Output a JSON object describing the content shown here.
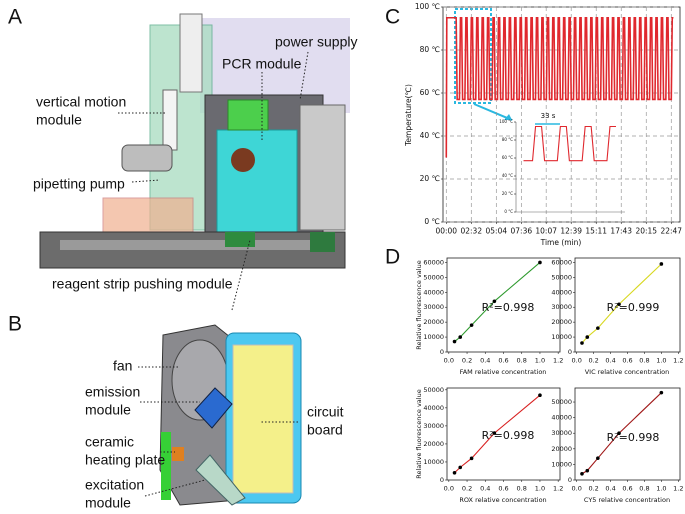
{
  "panels": {
    "a": {
      "letter": "A",
      "labels": [
        [
          "power supply"
        ],
        [
          "PCR module"
        ],
        [
          "vertical motion",
          "module"
        ],
        [
          "pipetting pump"
        ],
        [
          "reagent strip pushing module"
        ]
      ]
    },
    "b": {
      "letter": "B",
      "labels": [
        [
          "fan"
        ],
        [
          "emission",
          "module"
        ],
        [
          "ceramic",
          "heating plate"
        ],
        [
          "excitation",
          "module"
        ],
        [
          "circuit",
          "board"
        ]
      ]
    },
    "c": {
      "letter": "C"
    },
    "d": {
      "letter": "D"
    }
  },
  "chart_data": [
    {
      "type": "line",
      "ylabel": "Temperature(℃)",
      "xlabel": "Time (min)",
      "xlim": [
        -20,
        1420
      ],
      "ylim": [
        0,
        100
      ],
      "xticks": [
        {
          "value": 0,
          "label": "00:00"
        },
        {
          "value": 152,
          "label": "02:32"
        },
        {
          "value": 304,
          "label": "05:04"
        },
        {
          "value": 456,
          "label": "07:36"
        },
        {
          "value": 607,
          "label": "10:07"
        },
        {
          "value": 759,
          "label": "12:39"
        },
        {
          "value": 911,
          "label": "15:11"
        },
        {
          "value": 1063,
          "label": "17:43"
        },
        {
          "value": 1215,
          "label": "20:15"
        },
        {
          "value": 1367,
          "label": "22:47"
        }
      ],
      "yticks": [
        {
          "value": 0,
          "label": "0 ℃"
        },
        {
          "value": 20,
          "label": "20 ℃"
        },
        {
          "value": 40,
          "label": "40 ℃"
        },
        {
          "value": 60,
          "label": "60 ℃"
        },
        {
          "value": 80,
          "label": "80 ℃"
        },
        {
          "value": 100,
          "label": "100 ℃"
        }
      ],
      "grid": true,
      "color": "#e0282e",
      "x": [
        0,
        3,
        60,
        66,
        80,
        86,
        93,
        99,
        113,
        119,
        126,
        132,
        146,
        152,
        159,
        165,
        179,
        185,
        192,
        198,
        212,
        218,
        225,
        231,
        245,
        251,
        258,
        264,
        278,
        284,
        291,
        297,
        311,
        317,
        324,
        330,
        344,
        350,
        357,
        363,
        377,
        383,
        390,
        396,
        410,
        416,
        423,
        429,
        443,
        449,
        456,
        462,
        476,
        482,
        489,
        495,
        509,
        515,
        522,
        528,
        542,
        548,
        555,
        561,
        575,
        581,
        588,
        594,
        608,
        614,
        621,
        627,
        641,
        647,
        654,
        660,
        674,
        680,
        687,
        693,
        707,
        713,
        720,
        726,
        740,
        746,
        753,
        759,
        773,
        779,
        786,
        792,
        806,
        812,
        819,
        825,
        839,
        845,
        852,
        858,
        872,
        878,
        885,
        891,
        905,
        911,
        918,
        924,
        938,
        944,
        951,
        957,
        971,
        977,
        984,
        990,
        1004,
        1010,
        1017,
        1023,
        1037,
        1043,
        1050,
        1056,
        1070,
        1076,
        1083,
        1089,
        1103,
        1109,
        1116,
        1122,
        1136,
        1142,
        1149,
        1155,
        1169,
        1175,
        1182,
        1188,
        1202,
        1208,
        1215,
        1221,
        1235,
        1241,
        1248,
        1254,
        1268,
        1274,
        1281,
        1287,
        1301,
        1307,
        1314,
        1320,
        1334,
        1340,
        1347,
        1353,
        1367,
        1373,
        1380
      ],
      "values": [
        30,
        95,
        95,
        57,
        57,
        95,
        95,
        57,
        57,
        95,
        95,
        57,
        57,
        95,
        95,
        57,
        57,
        95,
        95,
        57,
        57,
        95,
        95,
        57,
        57,
        95,
        95,
        57,
        57,
        95,
        95,
        57,
        57,
        95,
        95,
        57,
        57,
        95,
        95,
        57,
        57,
        95,
        95,
        57,
        57,
        95,
        95,
        57,
        57,
        95,
        95,
        57,
        57,
        95,
        95,
        57,
        57,
        95,
        95,
        57,
        57,
        95,
        95,
        57,
        57,
        95,
        95,
        57,
        57,
        95,
        95,
        57,
        57,
        95,
        95,
        57,
        57,
        95,
        95,
        57,
        57,
        95,
        95,
        57,
        57,
        95,
        95,
        57,
        57,
        95,
        95,
        57,
        57,
        95,
        95,
        57,
        57,
        95,
        95,
        57,
        57,
        95,
        95,
        57,
        57,
        95,
        95,
        57,
        57,
        95,
        95,
        57,
        57,
        95,
        95,
        57,
        57,
        95,
        95,
        57,
        57,
        95,
        95,
        57,
        57,
        95,
        95,
        57,
        57,
        95,
        95,
        57,
        57,
        95,
        95,
        57,
        57,
        95,
        95,
        57,
        57,
        95,
        95,
        57,
        57,
        95,
        95,
        57,
        57,
        95,
        95,
        57,
        57,
        95,
        95,
        57,
        57,
        95,
        95,
        57,
        57,
        95,
        95
      ]
    },
    {
      "type": "line",
      "annotation": "33 s",
      "xlim": [
        -10,
        135
      ],
      "ylim": [
        0,
        100
      ],
      "yticks": [
        {
          "value": 0,
          "label": "0 °C"
        },
        {
          "value": 20,
          "label": "20 °C"
        },
        {
          "value": 40,
          "label": "40 °C"
        },
        {
          "value": 60,
          "label": "60 °C"
        },
        {
          "value": 80,
          "label": "80 °C"
        },
        {
          "value": 100,
          "label": "100 °C"
        }
      ],
      "color": "#e0282e",
      "x": [
        0,
        12,
        16,
        24,
        28,
        45,
        49,
        57,
        61,
        78,
        82,
        90,
        94,
        111,
        115,
        123
      ],
      "values": [
        57,
        57,
        95,
        95,
        57,
        57,
        95,
        95,
        57,
        57,
        95,
        95,
        57,
        57,
        95,
        95
      ]
    },
    {
      "type": "line",
      "ylabel": "Relative fluorescence value",
      "xlabel": "FAM relative concentration",
      "annotation": "R²=0.998",
      "xlim": [
        -0.02,
        1.22
      ],
      "ylim": [
        0,
        63000
      ],
      "xticks": [
        {
          "value": 0,
          "label": "0.0"
        },
        0.2,
        0.4,
        0.6,
        0.8,
        {
          "value": 1,
          "label": "1.0"
        },
        1.2
      ],
      "yticks": [
        0,
        10000,
        20000,
        30000,
        40000,
        50000,
        60000
      ],
      "color": "#2e9a2e",
      "marker_color": "#000000",
      "x": [
        0.0625,
        0.125,
        0.25,
        0.5,
        1
      ],
      "values": [
        7000,
        10000,
        18000,
        34000,
        60000
      ]
    },
    {
      "type": "line",
      "xlabel": "VIC relative concentration",
      "annotation": "R²=0.999",
      "xlim": [
        -0.02,
        1.22
      ],
      "ylim": [
        0,
        63000
      ],
      "xticks": [
        {
          "value": 0,
          "label": "0.0"
        },
        0.2,
        0.4,
        0.6,
        0.8,
        {
          "value": 1,
          "label": "1.0"
        },
        1.2
      ],
      "yticks": [
        0,
        10000,
        20000,
        30000,
        40000,
        50000,
        60000
      ],
      "color": "#d8d820",
      "marker_color": "#000000",
      "x": [
        0.0625,
        0.125,
        0.25,
        0.5,
        1
      ],
      "values": [
        6000,
        10000,
        16000,
        32000,
        59000
      ]
    },
    {
      "type": "line",
      "ylabel": "Relative fluorescence value",
      "xlabel": "ROX relative concentration",
      "annotation": "R²=0.998",
      "xlim": [
        -0.02,
        1.22
      ],
      "ylim": [
        0,
        51000
      ],
      "xticks": [
        {
          "value": 0,
          "label": "0.0"
        },
        0.2,
        0.4,
        0.6,
        0.8,
        {
          "value": 1,
          "label": "1.0"
        },
        1.2
      ],
      "yticks": [
        0,
        10000,
        20000,
        30000,
        40000,
        50000
      ],
      "color": "#d82020",
      "marker_color": "#000000",
      "x": [
        0.0625,
        0.125,
        0.25,
        0.5,
        1
      ],
      "values": [
        4000,
        7000,
        12000,
        26000,
        47000
      ]
    },
    {
      "type": "line",
      "xlabel": "CY5 relative concentration",
      "annotation": "R²=0.998",
      "xlim": [
        -0.02,
        1.22
      ],
      "ylim": [
        0,
        59000
      ],
      "xticks": [
        {
          "value": 0,
          "label": "0.0"
        },
        0.2,
        0.4,
        0.6,
        0.8,
        {
          "value": 1,
          "label": "1.0"
        },
        1.2
      ],
      "yticks": [
        0,
        10000,
        20000,
        30000,
        40000,
        50000
      ],
      "color": "#a01818",
      "marker_color": "#000000",
      "x": [
        0.0625,
        0.125,
        0.25,
        0.5,
        1
      ],
      "values": [
        4000,
        6000,
        14000,
        30000,
        56000
      ]
    }
  ]
}
